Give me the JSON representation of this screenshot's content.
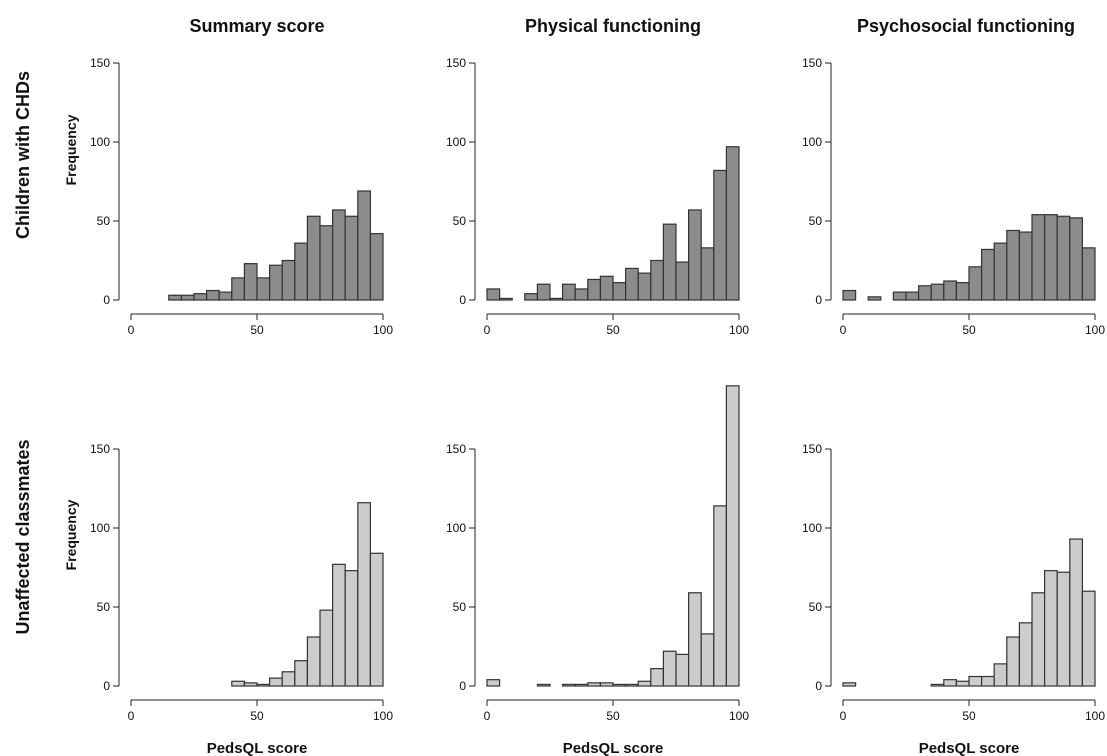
{
  "column_titles": [
    "Summary score",
    "Physical functioning",
    "Psychosocial functioning"
  ],
  "row_titles": [
    "Children with CHDs",
    "Unaffected classmates"
  ],
  "ylabel": "Frequency",
  "xlabel": "PedsQL score",
  "colors": {
    "row0_bar": "#8c8c8c",
    "row1_bar": "#cccccc",
    "stroke": "#333333"
  },
  "chart_data": [
    {
      "type": "bar",
      "row": 0,
      "col": 0,
      "title": "Summary score",
      "ylabel": "Frequency",
      "xlabel": "",
      "xlim": [
        0,
        100
      ],
      "ylim": [
        0,
        150
      ],
      "xticks": [
        0,
        50,
        100
      ],
      "yticks": [
        0,
        50,
        100,
        150
      ],
      "bin_width": 5,
      "bins": [
        15,
        20,
        25,
        30,
        35,
        40,
        45,
        50,
        55,
        60,
        65,
        70,
        75,
        80,
        85,
        90,
        95
      ],
      "values": [
        3,
        3,
        4,
        6,
        5,
        14,
        23,
        14,
        22,
        25,
        36,
        53,
        47,
        57,
        53,
        69,
        42
      ]
    },
    {
      "type": "bar",
      "row": 0,
      "col": 1,
      "title": "Physical functioning",
      "ylabel": "",
      "xlabel": "",
      "xlim": [
        0,
        100
      ],
      "ylim": [
        0,
        150
      ],
      "xticks": [
        0,
        50,
        100
      ],
      "yticks": [
        0,
        50,
        100,
        150
      ],
      "bin_width": 5,
      "bins": [
        0,
        5,
        10,
        15,
        20,
        25,
        30,
        35,
        40,
        45,
        50,
        55,
        60,
        65,
        70,
        75,
        80,
        85,
        90,
        95
      ],
      "values": [
        7,
        1,
        0,
        4,
        10,
        1,
        10,
        7,
        13,
        15,
        11,
        20,
        17,
        25,
        48,
        24,
        57,
        33,
        82,
        97
      ]
    },
    {
      "type": "bar",
      "row": 0,
      "col": 2,
      "title": "Psychosocial functioning",
      "ylabel": "",
      "xlabel": "",
      "xlim": [
        0,
        100
      ],
      "ylim": [
        0,
        150
      ],
      "xticks": [
        0,
        50,
        100
      ],
      "yticks": [
        0,
        50,
        100,
        150
      ],
      "bin_width": 5,
      "bins": [
        0,
        5,
        10,
        15,
        20,
        25,
        30,
        35,
        40,
        45,
        50,
        55,
        60,
        65,
        70,
        75,
        80,
        85,
        90,
        95
      ],
      "values": [
        6,
        0,
        2,
        0,
        5,
        5,
        9,
        10,
        12,
        11,
        21,
        32,
        36,
        44,
        43,
        54,
        54,
        53,
        52,
        33
      ]
    },
    {
      "type": "bar",
      "row": 1,
      "col": 0,
      "title": "",
      "ylabel": "Frequency",
      "xlabel": "PedsQL score",
      "xlim": [
        0,
        100
      ],
      "ylim": [
        0,
        150
      ],
      "xticks": [
        0,
        50,
        100
      ],
      "yticks": [
        0,
        50,
        100,
        150
      ],
      "bin_width": 5,
      "bins": [
        40,
        45,
        50,
        55,
        60,
        65,
        70,
        75,
        80,
        85,
        90,
        95
      ],
      "values": [
        3,
        2,
        1,
        5,
        9,
        16,
        31,
        48,
        77,
        73,
        116,
        84
      ]
    },
    {
      "type": "bar",
      "row": 1,
      "col": 1,
      "title": "",
      "ylabel": "",
      "xlabel": "PedsQL score",
      "xlim": [
        0,
        100
      ],
      "ylim": [
        0,
        150
      ],
      "xticks": [
        0,
        50,
        100
      ],
      "yticks": [
        0,
        50,
        100,
        150
      ],
      "bin_width": 5,
      "bins": [
        0,
        5,
        10,
        15,
        20,
        25,
        30,
        35,
        40,
        45,
        50,
        55,
        60,
        65,
        70,
        75,
        80,
        85,
        90,
        95
      ],
      "values": [
        4,
        0,
        0,
        0,
        1,
        0,
        1,
        1,
        2,
        2,
        1,
        1,
        3,
        11,
        22,
        20,
        59,
        33,
        114,
        190
      ]
    },
    {
      "type": "bar",
      "row": 1,
      "col": 2,
      "title": "",
      "ylabel": "",
      "xlabel": "PedsQL score",
      "xlim": [
        0,
        100
      ],
      "ylim": [
        0,
        150
      ],
      "xticks": [
        0,
        50,
        100
      ],
      "yticks": [
        0,
        50,
        100,
        150
      ],
      "bin_width": 5,
      "bins": [
        0,
        5,
        10,
        15,
        20,
        25,
        30,
        35,
        40,
        45,
        50,
        55,
        60,
        65,
        70,
        75,
        80,
        85,
        90,
        95
      ],
      "values": [
        2,
        0,
        0,
        0,
        0,
        0,
        0,
        1,
        4,
        3,
        6,
        6,
        14,
        31,
        40,
        59,
        73,
        72,
        93,
        60
      ]
    }
  ]
}
